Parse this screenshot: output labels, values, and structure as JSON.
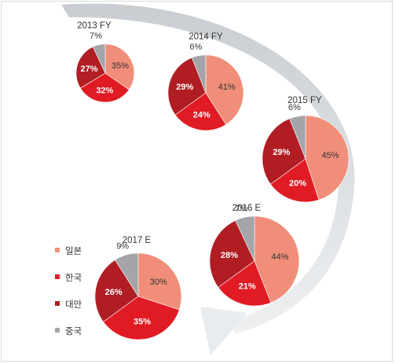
{
  "colors": {
    "일본": "#f08e79",
    "한국": "#e01b24",
    "대만": "#b01e24",
    "중국": "#a3a5a8",
    "arrow": "#c7ccd1",
    "arrow_light": "#eef0f2"
  },
  "legend": [
    {
      "label": "일본",
      "key": "일본"
    },
    {
      "label": "한국",
      "key": "한국"
    },
    {
      "label": "대만",
      "key": "대만"
    },
    {
      "label": "중국",
      "key": "중국"
    }
  ],
  "chart_data": [
    {
      "type": "pie",
      "title": "2013 FY",
      "categories": [
        "일본",
        "한국",
        "대만",
        "중국"
      ],
      "values": [
        35,
        32,
        27,
        7
      ],
      "labels": [
        "35%",
        "32%",
        "27%",
        "7%"
      ]
    },
    {
      "type": "pie",
      "title": "2014 FY",
      "categories": [
        "일본",
        "한국",
        "대만",
        "중국"
      ],
      "values": [
        41,
        24,
        29,
        6
      ],
      "labels": [
        "41%",
        "24%",
        "29%",
        "6%"
      ]
    },
    {
      "type": "pie",
      "title": "2015 FY",
      "categories": [
        "일본",
        "한국",
        "대만",
        "중국"
      ],
      "values": [
        45,
        20,
        29,
        6
      ],
      "labels": [
        "45%",
        "20%",
        "29%",
        "6%"
      ]
    },
    {
      "type": "pie",
      "title": "2016 E",
      "categories": [
        "일본",
        "한국",
        "대만",
        "중국"
      ],
      "values": [
        44,
        21,
        28,
        7
      ],
      "labels": [
        "44%",
        "21%",
        "28%",
        "7%"
      ]
    },
    {
      "type": "pie",
      "title": "2017 E",
      "categories": [
        "일본",
        "한국",
        "대만",
        "중국"
      ],
      "values": [
        30,
        35,
        26,
        9
      ],
      "labels": [
        "30%",
        "35%",
        "26%",
        "9%"
      ]
    }
  ]
}
